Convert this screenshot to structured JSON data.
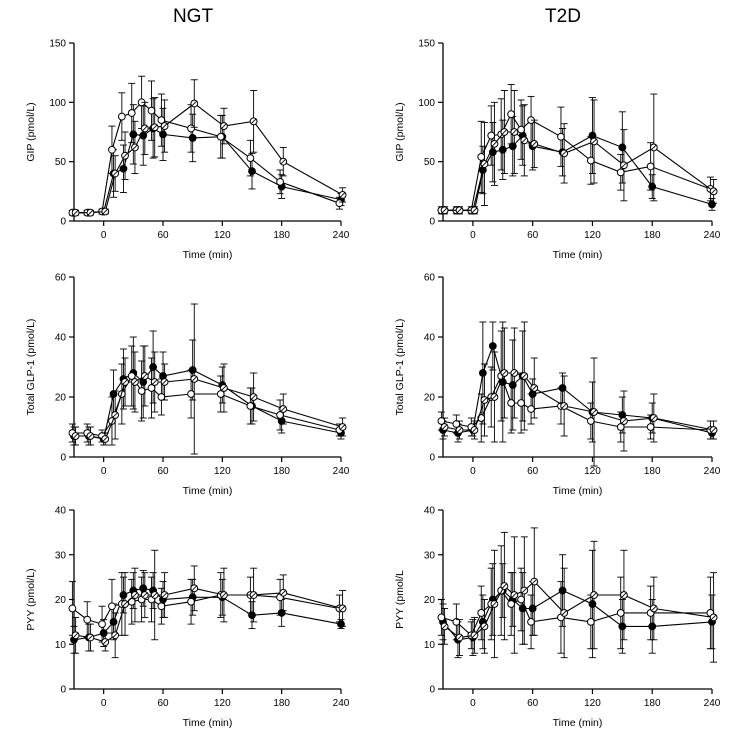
{
  "column_titles": [
    "NGT",
    "T2D"
  ],
  "colors": {
    "line": "#000000",
    "filled": "#000000",
    "open": "#ffffff"
  },
  "chart_data": [
    {
      "type": "line",
      "panel_title": "NGT",
      "xlabel": "Time (min)",
      "ylabel": "GIP (pmol/L)",
      "xlim": [
        -30,
        240
      ],
      "ylim": [
        0,
        150
      ],
      "xticks": [
        0,
        60,
        120,
        180,
        240
      ],
      "yticks": [
        0,
        50,
        100,
        150
      ],
      "x": [
        -30,
        -15,
        0,
        10,
        20,
        30,
        40,
        50,
        60,
        90,
        120,
        150,
        180,
        240
      ],
      "series": [
        {
          "marker": "filled-circle",
          "values": [
            7,
            7,
            8,
            40,
            44,
            73,
            72,
            78,
            73,
            70,
            71,
            42,
            29,
            18
          ],
          "err": [
            2,
            2,
            2,
            20,
            20,
            25,
            25,
            25,
            22,
            20,
            18,
            15,
            10,
            5
          ]
        },
        {
          "marker": "open-circle",
          "values": [
            7,
            7,
            8,
            60,
            88,
            91,
            100,
            93,
            85,
            78,
            71,
            53,
            33,
            15
          ],
          "err": [
            2,
            2,
            2,
            20,
            20,
            25,
            22,
            25,
            22,
            20,
            18,
            15,
            10,
            5
          ]
        },
        {
          "marker": "crossed-circle",
          "values": [
            7,
            7,
            8,
            40,
            55,
            62,
            78,
            79,
            80,
            99,
            80,
            84,
            50,
            22
          ],
          "err": [
            2,
            2,
            2,
            15,
            20,
            22,
            22,
            25,
            22,
            20,
            15,
            26,
            12,
            6
          ]
        }
      ]
    },
    {
      "type": "line",
      "panel_title": "T2D",
      "xlabel": "Time (min)",
      "ylabel": "GIP (pmol/L)",
      "xlim": [
        -30,
        240
      ],
      "ylim": [
        0,
        150
      ],
      "xticks": [
        0,
        60,
        120,
        180,
        240
      ],
      "yticks": [
        0,
        50,
        100,
        150
      ],
      "x": [
        -30,
        -15,
        0,
        10,
        20,
        30,
        40,
        50,
        60,
        90,
        120,
        150,
        180,
        240
      ],
      "series": [
        {
          "marker": "filled-circle",
          "values": [
            9,
            9,
            9,
            43,
            58,
            60,
            63,
            72,
            63,
            58,
            72,
            62,
            29,
            14
          ],
          "err": [
            3,
            3,
            3,
            20,
            25,
            25,
            25,
            25,
            20,
            20,
            32,
            30,
            10,
            5
          ]
        },
        {
          "marker": "open-circle",
          "values": [
            9,
            9,
            9,
            54,
            72,
            73,
            90,
            77,
            85,
            71,
            51,
            41,
            46,
            27
          ],
          "err": [
            3,
            3,
            3,
            30,
            25,
            30,
            25,
            25,
            20,
            25,
            20,
            15,
            20,
            10
          ]
        },
        {
          "marker": "crossed-circle",
          "values": [
            9,
            9,
            9,
            48,
            65,
            75,
            75,
            68,
            65,
            57,
            67,
            47,
            62,
            25
          ],
          "err": [
            3,
            3,
            3,
            35,
            35,
            35,
            35,
            30,
            20,
            25,
            35,
            30,
            45,
            10
          ]
        }
      ]
    },
    {
      "type": "line",
      "panel_title": "NGT",
      "xlabel": "Time (min)",
      "ylabel": "Total GLP-1 (pmol/L)",
      "xlim": [
        -30,
        240
      ],
      "ylim": [
        0,
        60
      ],
      "xticks": [
        0,
        60,
        120,
        180,
        240
      ],
      "yticks": [
        0,
        20,
        40,
        60
      ],
      "x": [
        -30,
        -15,
        0,
        10,
        20,
        30,
        40,
        50,
        60,
        90,
        120,
        150,
        180,
        240
      ],
      "series": [
        {
          "marker": "filled-circle",
          "values": [
            7,
            7,
            6,
            21,
            26,
            28,
            25,
            30,
            27,
            29,
            24,
            17,
            12,
            8
          ],
          "err": [
            3,
            3,
            2,
            8,
            10,
            12,
            12,
            12,
            8,
            10,
            6,
            6,
            4,
            2
          ]
        },
        {
          "marker": "open-circle",
          "values": [
            8,
            8,
            7,
            12,
            21,
            27,
            22,
            23,
            20,
            21,
            21,
            17,
            14,
            9
          ],
          "err": [
            3,
            3,
            2,
            8,
            10,
            10,
            10,
            10,
            6,
            8,
            6,
            6,
            5,
            2
          ]
        },
        {
          "marker": "crossed-circle",
          "values": [
            7,
            7,
            6,
            14,
            25,
            25,
            27,
            25,
            25,
            26,
            23,
            20,
            16,
            10
          ],
          "err": [
            3,
            3,
            2,
            8,
            8,
            10,
            10,
            10,
            6,
            25,
            8,
            8,
            5,
            3
          ]
        }
      ]
    },
    {
      "type": "line",
      "panel_title": "T2D",
      "xlabel": "Time (min)",
      "ylabel": "Total GLP-1 (pmol/L)",
      "xlim": [
        -30,
        240
      ],
      "ylim": [
        0,
        60
      ],
      "xticks": [
        0,
        60,
        120,
        180,
        240
      ],
      "yticks": [
        0,
        20,
        40,
        60
      ],
      "x": [
        -30,
        -15,
        0,
        10,
        20,
        30,
        40,
        50,
        60,
        90,
        120,
        150,
        180,
        240
      ],
      "series": [
        {
          "marker": "filled-circle",
          "values": [
            9,
            8,
            9,
            28,
            37,
            25,
            24,
            27,
            21,
            23,
            15,
            14,
            13,
            8
          ],
          "err": [
            3,
            3,
            2,
            17,
            8,
            20,
            15,
            15,
            5,
            5,
            10,
            6,
            5,
            2
          ]
        },
        {
          "marker": "open-circle",
          "values": [
            12,
            11,
            10,
            13,
            20,
            27,
            18,
            18,
            16,
            17,
            12,
            10,
            10,
            9
          ],
          "err": [
            3,
            3,
            3,
            8,
            10,
            15,
            10,
            10,
            5,
            6,
            6,
            5,
            4,
            3
          ]
        },
        {
          "marker": "crossed-circle",
          "values": [
            10,
            9,
            9,
            19,
            20,
            28,
            28,
            27,
            23,
            17,
            15,
            12,
            13,
            9
          ],
          "err": [
            3,
            3,
            3,
            12,
            15,
            15,
            15,
            18,
            10,
            10,
            18,
            10,
            8,
            3
          ]
        }
      ]
    },
    {
      "type": "line",
      "panel_title": "NGT",
      "xlabel": "Time (min)",
      "ylabel": "PYY (pmol/L)",
      "xlim": [
        -30,
        240
      ],
      "ylim": [
        0,
        40
      ],
      "xticks": [
        0,
        60,
        120,
        180,
        240
      ],
      "yticks": [
        0,
        10,
        20,
        30,
        40
      ],
      "x": [
        -30,
        -15,
        0,
        10,
        20,
        30,
        40,
        50,
        60,
        90,
        120,
        150,
        180,
        240
      ],
      "series": [
        {
          "marker": "filled-circle",
          "values": [
            11,
            11.5,
            12.5,
            15,
            21,
            22,
            22.5,
            22,
            20,
            20.5,
            20.5,
            16.5,
            17,
            14.5
          ],
          "err": [
            3,
            3,
            3,
            4,
            4,
            4,
            4,
            4,
            4,
            4,
            4,
            3,
            3,
            1
          ]
        },
        {
          "marker": "open-circle",
          "values": [
            18,
            15.5,
            14.5,
            18.5,
            19,
            19.5,
            20,
            20,
            18.5,
            19.5,
            21,
            21,
            20.5,
            18
          ],
          "err": [
            6,
            4,
            4,
            6,
            7,
            5,
            5,
            5,
            4,
            5,
            5,
            4,
            4,
            3
          ]
        },
        {
          "marker": "crossed-circle",
          "values": [
            12,
            11.5,
            10.5,
            12,
            19,
            21,
            21,
            21,
            21,
            22.5,
            21,
            21,
            21.5,
            18
          ],
          "err": [
            4,
            3,
            2,
            5,
            7,
            6,
            5,
            10,
            5,
            5,
            6,
            6,
            4,
            4
          ]
        }
      ]
    },
    {
      "type": "line",
      "panel_title": "T2D",
      "xlabel": "Time (min)",
      "ylabel": "PYY (pmol/L",
      "xlim": [
        -30,
        240
      ],
      "ylim": [
        0,
        40
      ],
      "xticks": [
        0,
        60,
        120,
        180,
        240
      ],
      "yticks": [
        0,
        10,
        20,
        30,
        40
      ],
      "x": [
        -30,
        -15,
        0,
        10,
        20,
        30,
        40,
        50,
        60,
        90,
        120,
        150,
        180,
        240
      ],
      "series": [
        {
          "marker": "filled-circle",
          "values": [
            15,
            11,
            11.5,
            15,
            20,
            22,
            20,
            18,
            18,
            22,
            19,
            14,
            14,
            15
          ],
          "err": [
            4,
            4,
            4,
            6,
            8,
            6,
            6,
            8,
            6,
            8,
            12,
            6,
            6,
            6
          ]
        },
        {
          "marker": "open-circle",
          "values": [
            16,
            15,
            12,
            17,
            19,
            22,
            19,
            20,
            15,
            16,
            15,
            17,
            17,
            17
          ],
          "err": [
            4,
            4,
            3,
            6,
            8,
            10,
            7,
            7,
            6,
            8,
            6,
            8,
            6,
            8
          ]
        },
        {
          "marker": "crossed-circle",
          "values": [
            14,
            11.5,
            12,
            14,
            19,
            23,
            21,
            22,
            24,
            17,
            21,
            21,
            18,
            16
          ],
          "err": [
            4,
            4,
            4,
            6,
            12,
            12,
            13,
            12,
            12,
            10,
            12,
            10,
            7,
            10
          ]
        }
      ]
    }
  ]
}
